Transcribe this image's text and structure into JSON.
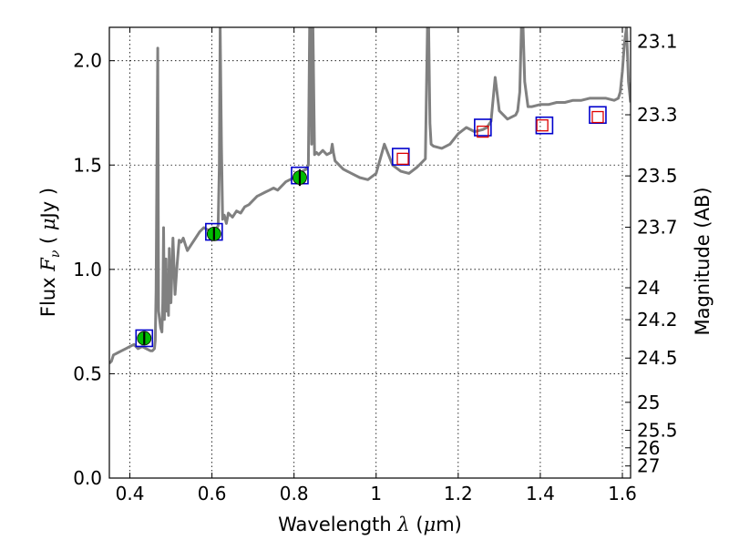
{
  "chart_data": {
    "type": "line",
    "title": "",
    "xlabel": "Wavelength  λ (μm)",
    "xlabel_parts": {
      "prefix": "Wavelength  ",
      "symbol": "λ",
      "unit_open": " (",
      "unit_mu": "μ",
      "unit_rest": "m)"
    },
    "ylabel": "Flux  Fν  ( μJy )",
    "ylabel_parts": {
      "prefix": "Flux  ",
      "symbol": "F",
      "subscript": "ν",
      "unit_open": "  ( ",
      "unit_mu": "μ",
      "unit_rest": "Jy )"
    },
    "y2label": "Magnitude (AB)",
    "xlim": [
      0.35,
      1.62
    ],
    "ylim": [
      0.0,
      2.16
    ],
    "xticks": [
      0.4,
      0.6,
      0.8,
      1.0,
      1.2,
      1.4,
      1.6
    ],
    "xtick_labels": [
      "0.4",
      "0.6",
      "0.8",
      "1",
      "1.2",
      "1.4",
      "1.6"
    ],
    "yticks": [
      0.0,
      0.5,
      1.0,
      1.5,
      2.0
    ],
    "ytick_labels": [
      "0.0",
      "0.5",
      "1.0",
      "1.5",
      "2.0"
    ],
    "y2ticks": [
      {
        "label": "23.1",
        "flux": 2.093
      },
      {
        "label": "23.3",
        "flux": 1.741
      },
      {
        "label": "23.5",
        "flux": 1.448
      },
      {
        "label": "23.7",
        "flux": 1.202
      },
      {
        "label": "24",
        "flux": 0.912
      },
      {
        "label": "24.2",
        "flux": 0.759
      },
      {
        "label": "24.5",
        "flux": 0.575
      },
      {
        "label": "25",
        "flux": 0.363
      },
      {
        "label": "25.5",
        "flux": 0.229
      },
      {
        "label": "26",
        "flux": 0.145
      },
      {
        "label": "27",
        "flux": 0.058
      }
    ],
    "grid": true,
    "colors": {
      "spectrum": "#808080",
      "observed": "#00bb00",
      "model_box": "#0000cc",
      "predicted": "#dd0000",
      "errorbar": "#000000"
    },
    "series": [
      {
        "name": "model spectrum",
        "kind": "line",
        "x": [
          0.35,
          0.355,
          0.36,
          0.37,
          0.38,
          0.39,
          0.4,
          0.41,
          0.42,
          0.43,
          0.44,
          0.45,
          0.455,
          0.46,
          0.462,
          0.464,
          0.466,
          0.468,
          0.47,
          0.475,
          0.478,
          0.48,
          0.482,
          0.484,
          0.486,
          0.488,
          0.49,
          0.492,
          0.494,
          0.496,
          0.498,
          0.5,
          0.505,
          0.51,
          0.515,
          0.52,
          0.525,
          0.53,
          0.535,
          0.54,
          0.55,
          0.56,
          0.57,
          0.58,
          0.59,
          0.6,
          0.61,
          0.615,
          0.618,
          0.62,
          0.623,
          0.626,
          0.63,
          0.635,
          0.64,
          0.65,
          0.66,
          0.67,
          0.68,
          0.69,
          0.7,
          0.71,
          0.72,
          0.73,
          0.74,
          0.75,
          0.76,
          0.77,
          0.78,
          0.79,
          0.8,
          0.81,
          0.82,
          0.83,
          0.835,
          0.838,
          0.84,
          0.843,
          0.846,
          0.85,
          0.855,
          0.86,
          0.87,
          0.88,
          0.89,
          0.893,
          0.896,
          0.9,
          0.92,
          0.94,
          0.96,
          0.98,
          1.0,
          1.02,
          1.04,
          1.06,
          1.08,
          1.1,
          1.12,
          1.125,
          1.128,
          1.131,
          1.134,
          1.14,
          1.16,
          1.18,
          1.2,
          1.22,
          1.24,
          1.26,
          1.27,
          1.28,
          1.29,
          1.3,
          1.32,
          1.34,
          1.345,
          1.35,
          1.354,
          1.358,
          1.362,
          1.37,
          1.38,
          1.4,
          1.42,
          1.44,
          1.46,
          1.48,
          1.5,
          1.52,
          1.54,
          1.56,
          1.58,
          1.59,
          1.595,
          1.6,
          1.605,
          1.61,
          1.615,
          1.62
        ],
        "y": [
          0.55,
          0.56,
          0.59,
          0.6,
          0.61,
          0.62,
          0.63,
          0.64,
          0.62,
          0.63,
          0.62,
          0.61,
          0.61,
          0.62,
          0.66,
          0.9,
          1.5,
          2.06,
          0.8,
          0.72,
          0.7,
          0.84,
          1.2,
          0.76,
          0.96,
          1.05,
          0.8,
          0.92,
          0.78,
          1.1,
          0.88,
          0.84,
          1.15,
          0.88,
          1.02,
          1.14,
          1.13,
          1.15,
          1.12,
          1.09,
          1.12,
          1.15,
          1.18,
          1.2,
          1.19,
          1.17,
          1.19,
          1.21,
          1.5,
          2.16,
          1.6,
          1.24,
          1.26,
          1.22,
          1.27,
          1.25,
          1.28,
          1.27,
          1.3,
          1.31,
          1.33,
          1.35,
          1.36,
          1.37,
          1.38,
          1.39,
          1.38,
          1.4,
          1.42,
          1.43,
          1.44,
          1.45,
          1.47,
          1.48,
          1.5,
          2.16,
          2.16,
          1.6,
          2.16,
          1.55,
          1.56,
          1.55,
          1.57,
          1.55,
          1.56,
          1.6,
          1.56,
          1.52,
          1.48,
          1.46,
          1.44,
          1.43,
          1.46,
          1.6,
          1.5,
          1.47,
          1.46,
          1.49,
          1.53,
          2.16,
          2.16,
          1.7,
          1.6,
          1.59,
          1.58,
          1.6,
          1.65,
          1.68,
          1.66,
          1.67,
          1.68,
          1.71,
          1.92,
          1.76,
          1.72,
          1.74,
          1.76,
          1.85,
          2.16,
          2.16,
          1.9,
          1.78,
          1.78,
          1.79,
          1.79,
          1.8,
          1.8,
          1.81,
          1.81,
          1.82,
          1.82,
          1.82,
          1.81,
          1.82,
          1.85,
          1.95,
          2.08,
          2.16,
          1.9,
          1.8
        ]
      },
      {
        "name": "observed photometry",
        "kind": "points",
        "x": [
          0.435,
          0.605,
          0.814
        ],
        "y": [
          0.67,
          1.17,
          1.44
        ],
        "yerr": [
          0.03,
          0.03,
          0.04
        ]
      },
      {
        "name": "model photometry",
        "kind": "open-squares",
        "x": [
          0.435,
          0.605,
          0.814,
          1.06,
          1.26,
          1.41,
          1.54
        ],
        "y": [
          0.67,
          1.18,
          1.45,
          1.54,
          1.68,
          1.69,
          1.74
        ]
      },
      {
        "name": "predicted photometry",
        "kind": "open-squares-small",
        "x": [
          1.065,
          1.26,
          1.405,
          1.54
        ],
        "y": [
          1.53,
          1.66,
          1.69,
          1.73
        ]
      }
    ]
  }
}
